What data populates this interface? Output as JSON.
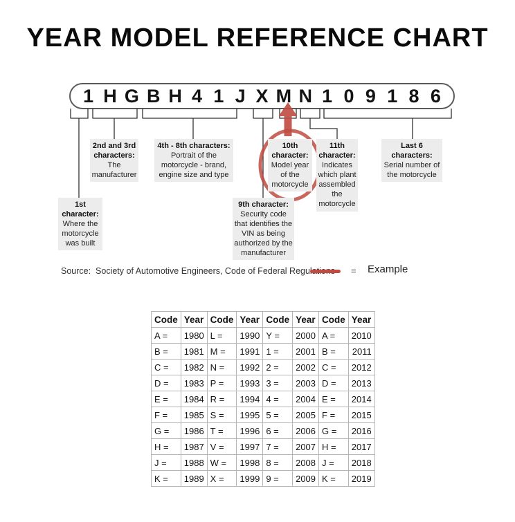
{
  "title": "YEAR MODEL REFERENCE CHART",
  "vin": {
    "characters": [
      "1",
      "H",
      "G",
      "B",
      "H",
      "4",
      "1",
      "J",
      "X",
      "M",
      "N",
      "1",
      "0",
      "9",
      "1",
      "8",
      "6"
    ]
  },
  "callouts": {
    "first": {
      "title": "1st character:",
      "body": "Where the motorcycle was built"
    },
    "second_third": {
      "title": "2nd and 3rd characters:",
      "body": "The manufacturer"
    },
    "fourth_eighth": {
      "title": "4th - 8th characters:",
      "body": "Portrait of the motorcycle - brand, engine size and type"
    },
    "ninth": {
      "title": "9th character:",
      "body": "Security code that identifies the VIN as being authorized by the manufacturer"
    },
    "tenth": {
      "title": "10th character:",
      "body": "Model year of the motorcycle"
    },
    "eleventh": {
      "title": "11th character:",
      "body": "Indicates which plant assembled the motorcycle"
    },
    "last_six": {
      "title": "Last 6 characters:",
      "body": "Serial number of the motorcycle"
    }
  },
  "source": {
    "text": "Source:  Society of Automotive Engineers, Code of Federal Regulations"
  },
  "legend": {
    "equals_sign": "=",
    "label": "Example"
  },
  "annotations": {
    "circled_vin_character": "M",
    "circled_callout": "10th character: Model year of the motorcycle",
    "circled_table_entry": "M = 1991"
  },
  "year_table": {
    "columns": [
      "Code",
      "Year",
      "Code",
      "Year",
      "Code",
      "Year",
      "Code",
      "Year"
    ],
    "rows": [
      [
        "A =",
        "1980",
        "L =",
        "1990",
        "Y =",
        "2000",
        "A =",
        "2010"
      ],
      [
        "B =",
        "1981",
        "M =",
        "1991",
        "1 =",
        "2001",
        "B =",
        "2011"
      ],
      [
        "C =",
        "1982",
        "N =",
        "1992",
        "2 =",
        "2002",
        "C =",
        "2012"
      ],
      [
        "D =",
        "1983",
        "P =",
        "1993",
        "3 =",
        "2003",
        "D =",
        "2013"
      ],
      [
        "E =",
        "1984",
        "R =",
        "1994",
        "4 =",
        "2004",
        "E =",
        "2014"
      ],
      [
        "F =",
        "1985",
        "S =",
        "1995",
        "5 =",
        "2005",
        "F =",
        "2015"
      ],
      [
        "G =",
        "1986",
        "T =",
        "1996",
        "6 =",
        "2006",
        "G =",
        "2016"
      ],
      [
        "H =",
        "1987",
        "V =",
        "1997",
        "7 =",
        "2007",
        "H =",
        "2017"
      ],
      [
        "J =",
        "1988",
        "W =",
        "1998",
        "8 =",
        "2008",
        "J =",
        "2018"
      ],
      [
        "K =",
        "1989",
        "X =",
        "1999",
        "9 =",
        "2009",
        "K =",
        "2019"
      ]
    ]
  },
  "colors": {
    "accent_red": "#bf4b42",
    "callout_bg": "#ececec",
    "table_border": "#b5b5b5"
  }
}
